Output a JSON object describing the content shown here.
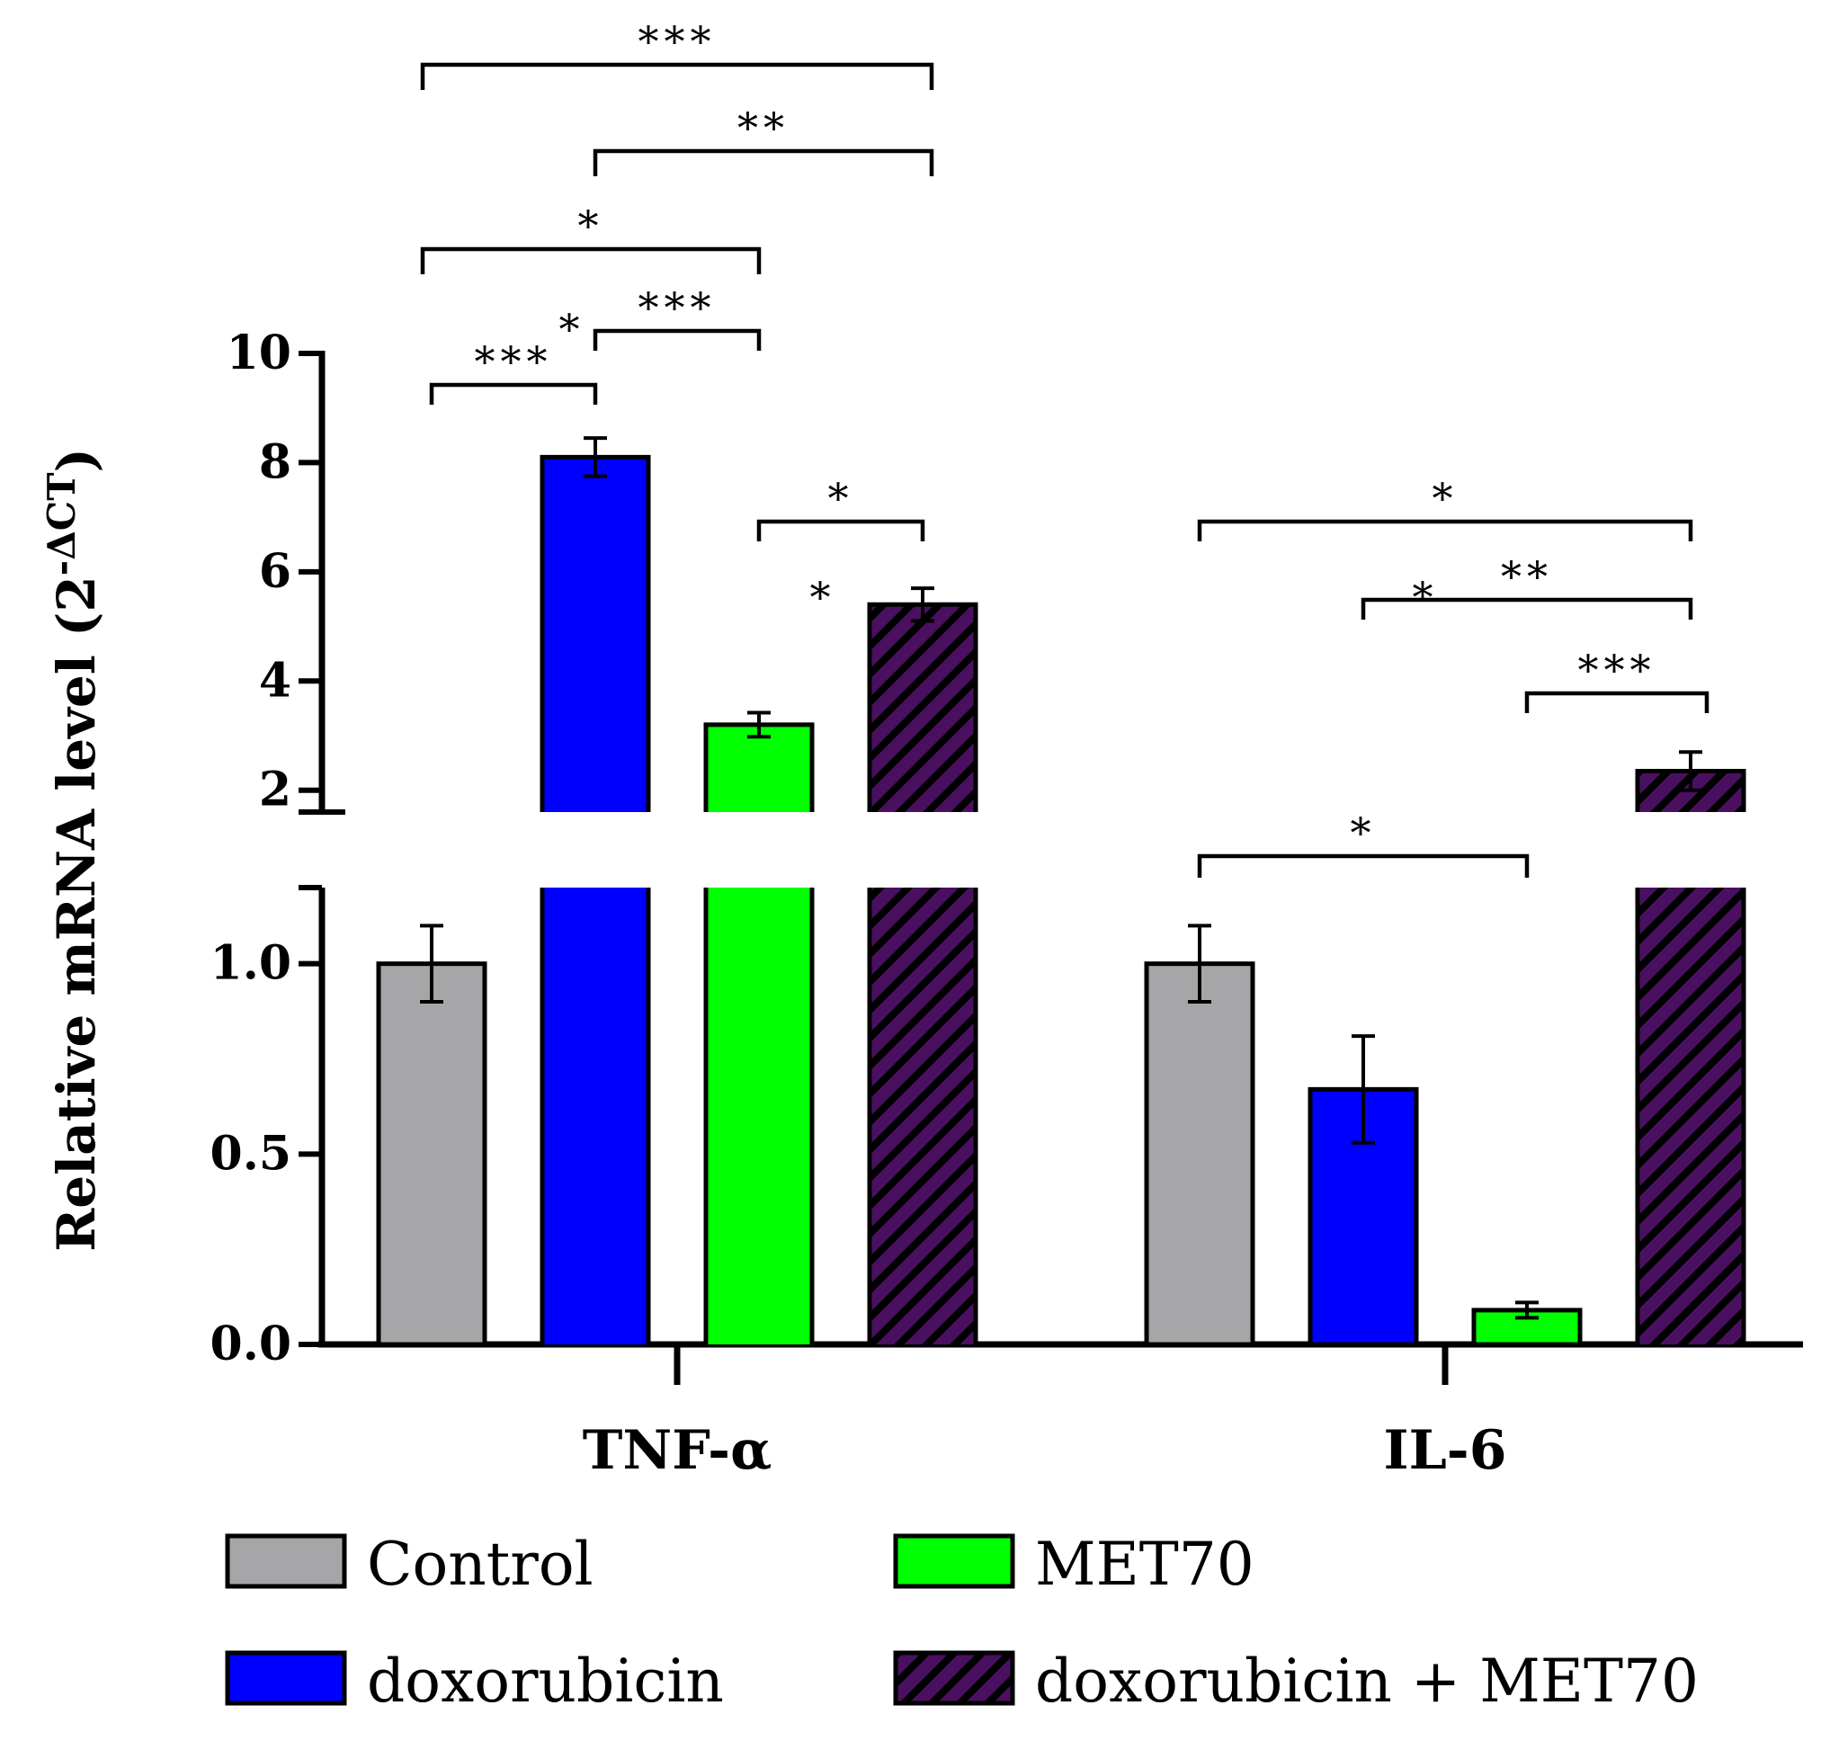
{
  "chart_data": {
    "type": "bar",
    "ylabel": "Relative mRNA level (2",
    "ylabel_superscript": "-ΔCT",
    "ylabel_close": ")",
    "categories": [
      "TNF-α",
      "IL-6"
    ],
    "y_axis_broken": true,
    "lower_segment": {
      "ylim": [
        0,
        1.2
      ],
      "ticks": [
        0.0,
        0.5,
        1.0
      ],
      "tick_labels": [
        "0.0",
        "0.5",
        "1.0"
      ]
    },
    "upper_segment": {
      "ylim": [
        1.6,
        10
      ],
      "ticks": [
        2,
        4,
        6,
        8,
        10
      ],
      "tick_labels": [
        "2",
        "4",
        "6",
        "8",
        "10"
      ]
    },
    "series": [
      {
        "name": "Control",
        "color": "#a6a6a8",
        "pattern": "solid",
        "values": [
          1.0,
          1.0
        ],
        "errors": [
          0.1,
          0.1
        ]
      },
      {
        "name": "doxorubicin",
        "color": "#0000ff",
        "pattern": "solid",
        "values": [
          8.1,
          0.67
        ],
        "errors": [
          0.35,
          0.14
        ]
      },
      {
        "name": "MET70",
        "color": "#00ff00",
        "pattern": "solid",
        "values": [
          3.2,
          0.09
        ],
        "errors": [
          0.22,
          0.02
        ]
      },
      {
        "name": "doxorubicin + MET70",
        "color": "#4a1060",
        "pattern": "hatched",
        "values": [
          5.4,
          2.35
        ],
        "errors": [
          0.3,
          0.35
        ]
      }
    ],
    "significance_brackets": [
      {
        "category": 0,
        "from": 0,
        "to": 3,
        "label": "***"
      },
      {
        "category": 0,
        "from": 1,
        "to": 3,
        "label": "**"
      },
      {
        "category": 0,
        "from": 0,
        "to": 2,
        "label": "*"
      },
      {
        "category": 0,
        "from": 1,
        "to": 2,
        "label": "***"
      },
      {
        "category": 0,
        "from": 0,
        "to": 1,
        "label": "***"
      },
      {
        "category": 0,
        "from": 2,
        "to": 3,
        "label": "*"
      },
      {
        "category": 1,
        "from": 0,
        "to": 3,
        "label": "*"
      },
      {
        "category": 1,
        "from": 1,
        "to": 3,
        "label": "**"
      },
      {
        "category": 1,
        "from": 2,
        "to": 3,
        "label": "***"
      },
      {
        "category": 1,
        "from": 0,
        "to": 2,
        "label": "*"
      }
    ],
    "extra_marks": [
      {
        "category": 0,
        "series": 1,
        "label": "*"
      },
      {
        "category": 0,
        "series": 3,
        "label": "*"
      },
      {
        "category": 1,
        "series": 1,
        "label": "*"
      }
    ],
    "legend": [
      "Control",
      "MET70",
      "doxorubicin",
      "doxorubicin + MET70"
    ]
  }
}
